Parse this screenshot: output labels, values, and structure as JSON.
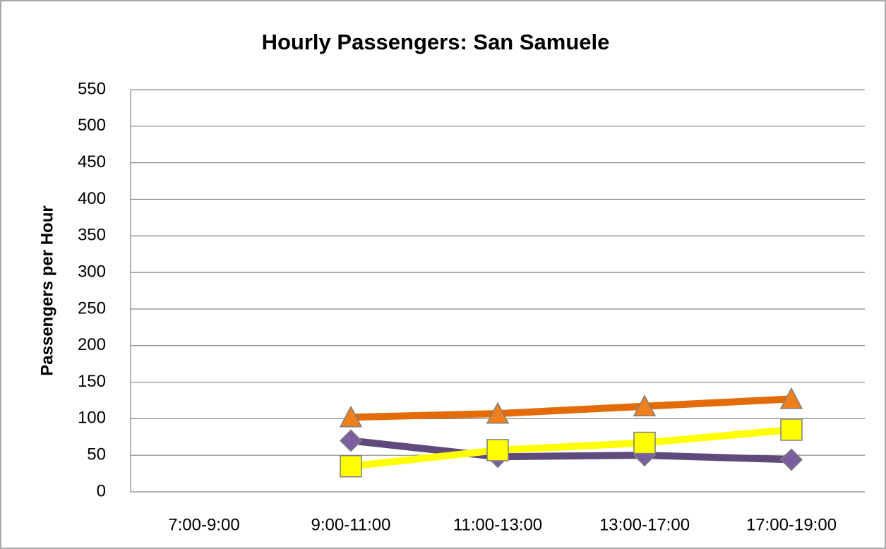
{
  "chart_data": {
    "type": "line",
    "title": "Hourly Passengers: San Samuele",
    "y_label": "Passengers per Hour",
    "categories": [
      "7:00-9:00",
      "9:00-11:00",
      "11:00-13:00",
      "13:00-17:00",
      "17:00-19:00"
    ],
    "series": [
      {
        "color": "#E36C09",
        "marker": "triangle",
        "marker_color": "#F07F1E",
        "values": [
          null,
          102,
          107,
          117,
          127
        ]
      },
      {
        "color": "#604A7B",
        "marker": "diamond",
        "marker_color": "#7A5E9E",
        "values": [
          null,
          70,
          48,
          50,
          44
        ]
      },
      {
        "color": "#FFFF00",
        "marker": "square",
        "marker_color": "#FFFF00",
        "values": [
          null,
          35,
          57,
          67,
          85
        ]
      }
    ],
    "ylim": [
      0,
      550
    ],
    "yticks": [
      0,
      50,
      100,
      150,
      200,
      250,
      300,
      350,
      400,
      450,
      500,
      550
    ],
    "grid": true
  }
}
